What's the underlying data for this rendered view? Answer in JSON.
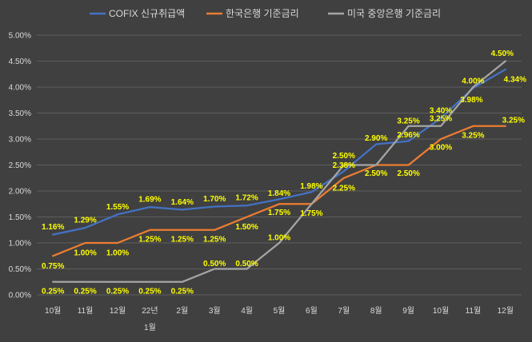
{
  "chart_data": {
    "type": "line",
    "title": "",
    "xlabel": "",
    "ylabel": "",
    "ylim": [
      0,
      5
    ],
    "y_ticks": [
      "0.00%",
      "0.50%",
      "1.00%",
      "1.50%",
      "2.00%",
      "2.50%",
      "3.00%",
      "3.50%",
      "4.00%",
      "4.50%",
      "5.00%"
    ],
    "categories": [
      {
        "line1": "10월",
        "line2": ""
      },
      {
        "line1": "11월",
        "line2": ""
      },
      {
        "line1": "12월",
        "line2": ""
      },
      {
        "line1": "22년",
        "line2": "1월"
      },
      {
        "line1": "2월",
        "line2": ""
      },
      {
        "line1": "3월",
        "line2": ""
      },
      {
        "line1": "4월",
        "line2": ""
      },
      {
        "line1": "5월",
        "line2": ""
      },
      {
        "line1": "6월",
        "line2": ""
      },
      {
        "line1": "7월",
        "line2": ""
      },
      {
        "line1": "8월",
        "line2": ""
      },
      {
        "line1": "9월",
        "line2": ""
      },
      {
        "line1": "10월",
        "line2": ""
      },
      {
        "line1": "11월",
        "line2": ""
      },
      {
        "line1": "12월",
        "line2": ""
      }
    ],
    "grid": true,
    "legend_position": "top",
    "series": [
      {
        "name": "COFIX 신규취급액",
        "color": "#4472c4",
        "values": [
          1.16,
          1.29,
          1.55,
          1.69,
          1.64,
          1.7,
          1.72,
          1.84,
          1.98,
          2.38,
          2.9,
          2.96,
          3.4,
          3.98,
          4.34
        ],
        "labels": [
          "1.16%",
          "1.29%",
          "1.55%",
          "1.69%",
          "1.64%",
          "1.70%",
          "1.72%",
          "1.84%",
          "1.98%",
          "2.38%",
          "2.90%",
          "2.96%",
          "3.40%",
          "3.98%",
          "4.34%"
        ]
      },
      {
        "name": "한국은행 기준금리",
        "color": "#ed7d31",
        "values": [
          0.75,
          1.0,
          1.0,
          1.25,
          1.25,
          1.25,
          1.5,
          1.75,
          1.75,
          2.25,
          2.5,
          2.5,
          3.0,
          3.25,
          3.25
        ],
        "labels": [
          "0.75%",
          "1.00%",
          "1.00%",
          "1.25%",
          "1.25%",
          "1.25%",
          "1.50%",
          "1.75%",
          "1.75%",
          "2.25%",
          "2.50%",
          "2.50%",
          "3.00%",
          "3.25%",
          "3.25%"
        ]
      },
      {
        "name": "미국 중앙은행 기준금리",
        "color": "#a5a5a5",
        "values": [
          0.25,
          0.25,
          0.25,
          0.25,
          0.25,
          0.5,
          0.5,
          1.0,
          1.75,
          2.5,
          2.5,
          3.25,
          3.25,
          4.0,
          4.5
        ],
        "labels": [
          "0.25%",
          "0.25%",
          "0.25%",
          "0.25%",
          "0.25%",
          "0.50%",
          "0.50%",
          "1.00%",
          "",
          "2.50%",
          "",
          "3.25%",
          "3.25%",
          "4.00%",
          "4.50%"
        ]
      }
    ]
  }
}
